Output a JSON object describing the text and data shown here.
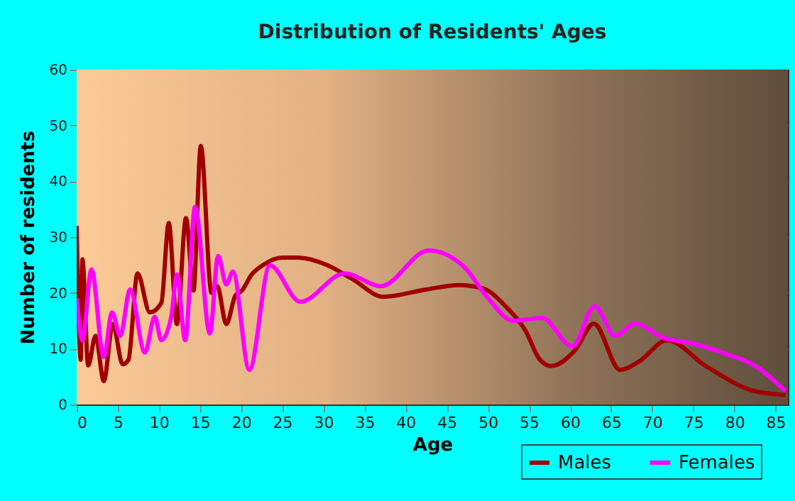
{
  "chart_data": {
    "type": "line",
    "title": "Distribution of Residents' Ages",
    "xlabel": "Age",
    "ylabel": "Number of residents",
    "xlim": [
      0,
      86.5
    ],
    "xticks": [
      0,
      5,
      10,
      15,
      20,
      25,
      30,
      35,
      40,
      45,
      50,
      55,
      60,
      65,
      70,
      75,
      80,
      85
    ],
    "ylim": [
      0,
      60
    ],
    "yticks": [
      0,
      10,
      20,
      30,
      40,
      50,
      60
    ],
    "grid": true,
    "legend": "bottom",
    "line_style": "solid",
    "marker": "none",
    "series": [
      {
        "name": "Males",
        "color": "#a00000",
        "x": [
          0,
          0.5,
          0.7,
          1.4,
          2.3,
          3.3,
          4.4,
          5.6,
          6.3,
          7.4,
          8.9,
          10.3,
          11.2,
          12.2,
          13.3,
          14.2,
          15.1,
          16.4,
          17.1,
          18.2,
          19.3,
          20.1,
          21.3,
          22.7,
          25,
          26.9,
          30.4,
          33.5,
          37.3,
          42.5,
          46.5,
          49.4,
          52.3,
          54.6,
          56.3,
          57.7,
          60.6,
          62.9,
          66.1,
          68.4,
          71.8,
          76.5,
          82.2,
          86.2
        ],
        "values": [
          32,
          8,
          26,
          7,
          12.3,
          4.2,
          14.4,
          7.2,
          8,
          23.5,
          16.5,
          18.2,
          32.5,
          14.4,
          33.4,
          20.4,
          46.3,
          20,
          21.2,
          14.4,
          19.5,
          20.4,
          23.3,
          25,
          26.3,
          26.3,
          25,
          22.5,
          19.3,
          20.6,
          21.4,
          20.8,
          17.4,
          13.2,
          8.1,
          6.9,
          9.7,
          14.5,
          6.2,
          7.7,
          11.5,
          6.9,
          2.5,
          1.7
        ]
      },
      {
        "name": "Females",
        "color": "#ff00ff",
        "x": [
          0,
          0.7,
          1.8,
          3.3,
          4.3,
          5.3,
          6.5,
          8.3,
          9.5,
          10.3,
          11.5,
          12.2,
          13.2,
          14.4,
          16.2,
          17.2,
          18.2,
          19,
          21,
          23.5,
          27.2,
          32.6,
          37,
          42.8,
          47.1,
          50,
          53.1,
          56.6,
          60.3,
          63,
          65.5,
          67.9,
          71.3,
          75.3,
          79.3,
          82.2,
          86.2
        ],
        "values": [
          19,
          11.5,
          24.2,
          8.5,
          16.5,
          12.3,
          20.6,
          9.3,
          15.7,
          11.5,
          15.7,
          23.3,
          11.5,
          35.4,
          12.7,
          26.6,
          21.5,
          23.8,
          6.2,
          24.9,
          18.4,
          23.5,
          21.2,
          27.6,
          24.7,
          19.1,
          15,
          15.5,
          10.4,
          17.6,
          12.3,
          14.5,
          12,
          10.8,
          8.9,
          7.2,
          2.4
        ]
      }
    ]
  }
}
